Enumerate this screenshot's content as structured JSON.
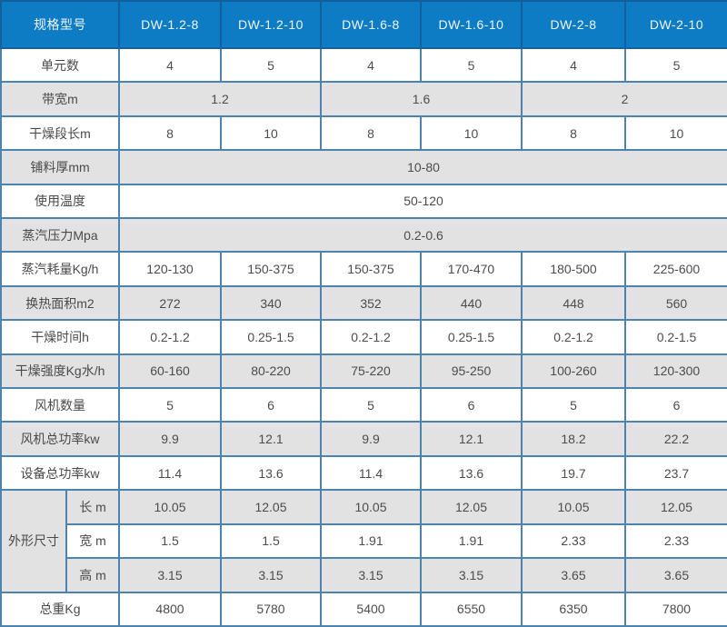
{
  "colors": {
    "header_bg": "#0e7cc5",
    "header_text": "#eef6fc",
    "header_border": "#135f9b",
    "body_border": "#4c83b0",
    "outer_border": "#2e6596",
    "row_alt_bg": "#e2e2e2",
    "row_bg": "#ffffff",
    "text": "#4c4c4c"
  },
  "table": {
    "corner_label": "规格型号",
    "columns": [
      "DW-1.2-8",
      "DW-1.2-10",
      "DW-1.6-8",
      "DW-1.6-10",
      "DW-2-8",
      "DW-2-10"
    ],
    "rows": [
      {
        "name": "unit-count",
        "label": "单元数",
        "type": "cells",
        "shade": "white",
        "values": [
          "4",
          "5",
          "4",
          "5",
          "4",
          "5"
        ]
      },
      {
        "name": "belt-width",
        "label": "带宽m",
        "type": "pairs",
        "shade": "gray",
        "values": [
          "1.2",
          "1.6",
          "2"
        ]
      },
      {
        "name": "drying-section-length",
        "label": "干燥段长m",
        "type": "cells",
        "shade": "white",
        "values": [
          "8",
          "10",
          "8",
          "10",
          "8",
          "10"
        ]
      },
      {
        "name": "material-layer-thickness",
        "label": "铺料厚mm",
        "type": "full",
        "shade": "gray",
        "values": [
          "10-80"
        ]
      },
      {
        "name": "operating-temperature",
        "label": "使用温度",
        "type": "full",
        "shade": "white",
        "values": [
          "50-120"
        ]
      },
      {
        "name": "steam-pressure",
        "label": "蒸汽压力Mpa",
        "type": "full",
        "shade": "gray",
        "values": [
          "0.2-0.6"
        ]
      },
      {
        "name": "steam-consumption",
        "label": "蒸汽耗量Kg/h",
        "type": "cells",
        "shade": "white",
        "values": [
          "120-130",
          "150-375",
          "150-375",
          "170-470",
          "180-500",
          "225-600"
        ]
      },
      {
        "name": "heat-exchange-area",
        "label": "换热面积m2",
        "type": "cells",
        "shade": "gray",
        "values": [
          "272",
          "340",
          "352",
          "440",
          "448",
          "560"
        ]
      },
      {
        "name": "drying-time",
        "label": "干燥时间h",
        "type": "cells",
        "shade": "white",
        "values": [
          "0.2-1.2",
          "0.25-1.5",
          "0.2-1.2",
          "0.25-1.5",
          "0.2-1.2",
          "0.2-1.5"
        ]
      },
      {
        "name": "drying-intensity",
        "label": "干燥强度Kg水/h",
        "type": "cells",
        "shade": "gray",
        "values": [
          "60-160",
          "80-220",
          "75-220",
          "95-250",
          "100-260",
          "120-300"
        ]
      },
      {
        "name": "fan-quantity",
        "label": "风机数量",
        "type": "cells",
        "shade": "white",
        "values": [
          "5",
          "6",
          "5",
          "6",
          "5",
          "6"
        ]
      },
      {
        "name": "fan-total-power",
        "label": "风机总功率kw",
        "type": "cells",
        "shade": "gray",
        "values": [
          "9.9",
          "12.1",
          "9.9",
          "12.1",
          "18.2",
          "22.2"
        ]
      },
      {
        "name": "equipment-total-power",
        "label": "设备总功率kw",
        "type": "cells",
        "shade": "white",
        "values": [
          "11.4",
          "13.6",
          "11.4",
          "13.6",
          "19.7",
          "23.7"
        ]
      },
      {
        "name": "dimension-length",
        "group_label": "外形尺寸",
        "label": "长 m",
        "type": "dim-first",
        "shade": "gray",
        "values": [
          "10.05",
          "12.05",
          "10.05",
          "12.05",
          "10.05",
          "12.05"
        ]
      },
      {
        "name": "dimension-width",
        "label": "宽 m",
        "type": "dim",
        "shade": "white",
        "values": [
          "1.5",
          "1.5",
          "1.91",
          "1.91",
          "2.33",
          "2.33"
        ]
      },
      {
        "name": "dimension-height",
        "label": "高 m",
        "type": "dim",
        "shade": "gray",
        "values": [
          "3.15",
          "3.15",
          "3.15",
          "3.15",
          "3.65",
          "3.65"
        ]
      },
      {
        "name": "total-weight",
        "label": "总重Kg",
        "type": "cells",
        "shade": "white",
        "values": [
          "4800",
          "5780",
          "5400",
          "6550",
          "6350",
          "7800"
        ]
      }
    ]
  }
}
